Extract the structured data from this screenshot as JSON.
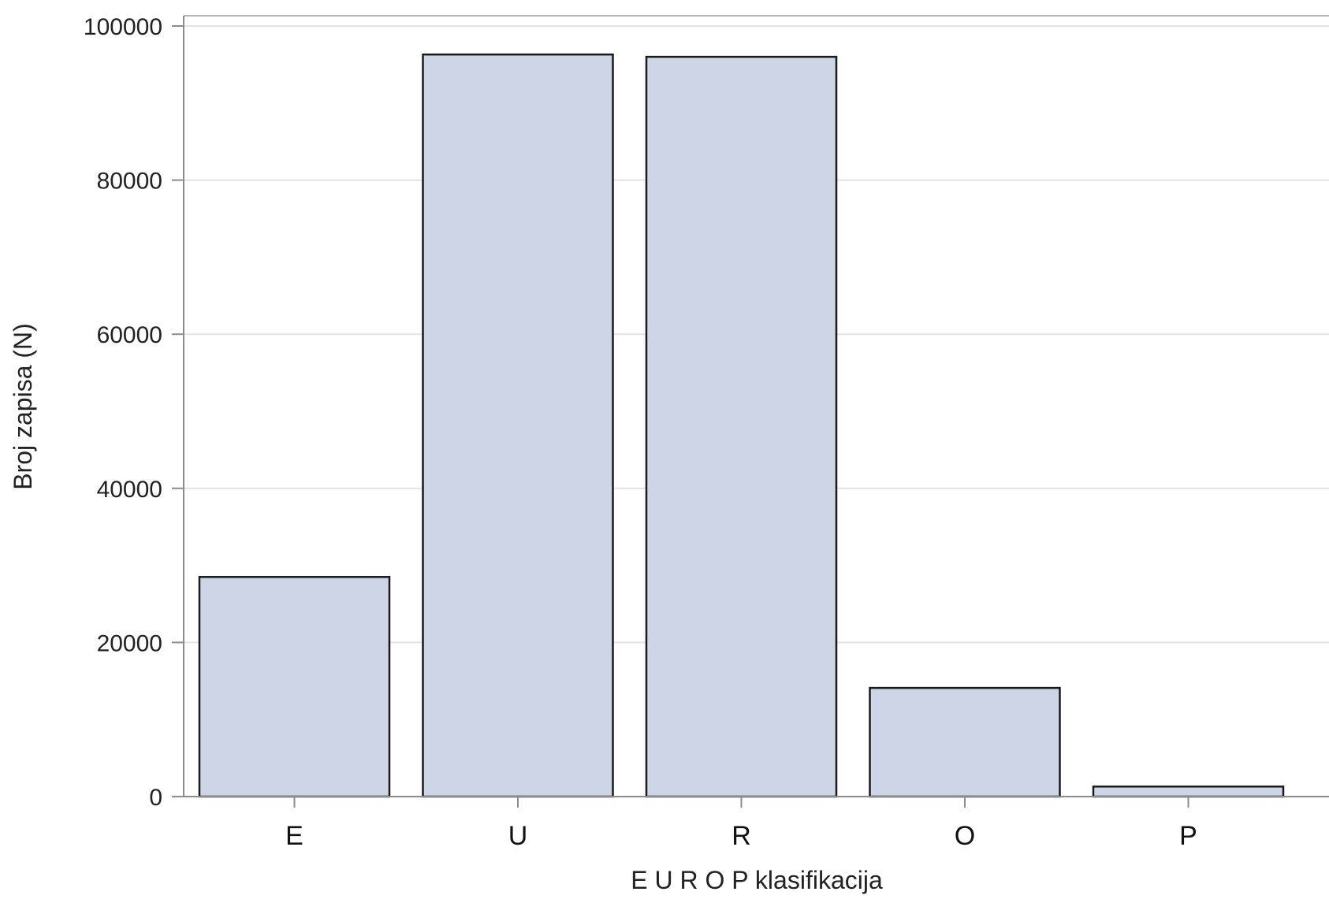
{
  "chart_data": {
    "type": "bar",
    "title": "",
    "xlabel": "E U R O P klasifikacija",
    "ylabel": "Broj zapisa (N)",
    "categories": [
      "E",
      "U",
      "R",
      "O",
      "P"
    ],
    "values": [
      28500,
      96300,
      96000,
      14100,
      1300
    ],
    "ylim": [
      0,
      100000
    ],
    "yticks": [
      0,
      20000,
      40000,
      60000,
      80000,
      100000
    ],
    "ytick_labels": [
      "0",
      "20000",
      "40000",
      "60000",
      "80000",
      "100000"
    ],
    "grid": true,
    "legend": "none",
    "colors": {
      "bar_fill": "#cdd6e6",
      "bar_stroke": "#1a1a1a",
      "grid": "#e3e3e3",
      "axis": "#8c8c8c",
      "frame": "#b5b5b5"
    }
  }
}
